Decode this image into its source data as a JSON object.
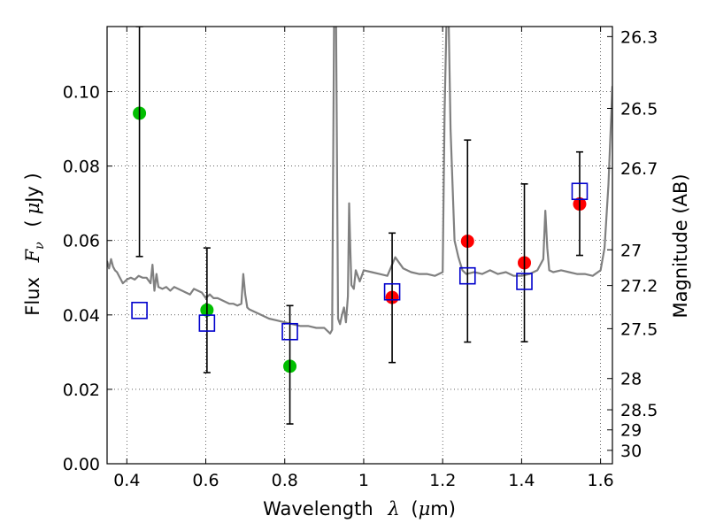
{
  "chart_data": {
    "type": "scatter",
    "title": "",
    "xlabel": {
      "prefix": "Wavelength",
      "symbol": "λ",
      "unit_open": "(",
      "unit_mu": "μ",
      "unit_rest": "m)"
    },
    "ylabel": {
      "prefix": "Flux",
      "symbol": "F",
      "subscript": "ν",
      "unit_open": "(",
      "unit_mu": "μ",
      "unit_rest": "Jy )"
    },
    "y2label": "Magnitude (AB)",
    "xlim": [
      0.35,
      1.63
    ],
    "ylim": [
      0.0,
      0.1175
    ],
    "grid": true,
    "x_ticks": [
      {
        "value": 0.4,
        "label": "0.4"
      },
      {
        "value": 0.6,
        "label": "0.6"
      },
      {
        "value": 0.8,
        "label": "0.8"
      },
      {
        "value": 1.0,
        "label": "1"
      },
      {
        "value": 1.2,
        "label": "1.2"
      },
      {
        "value": 1.4,
        "label": "1.4"
      },
      {
        "value": 1.6,
        "label": "1.6"
      }
    ],
    "y_ticks": [
      {
        "value": 0.0,
        "label": "0.00"
      },
      {
        "value": 0.02,
        "label": "0.02"
      },
      {
        "value": 0.04,
        "label": "0.04"
      },
      {
        "value": 0.06,
        "label": "0.06"
      },
      {
        "value": 0.08,
        "label": "0.08"
      },
      {
        "value": 0.1,
        "label": "0.10"
      }
    ],
    "y2_ticks": [
      {
        "flux": 0.1148,
        "label": "26.3"
      },
      {
        "flux": 0.0955,
        "label": "26.5"
      },
      {
        "flux": 0.0794,
        "label": "26.7"
      },
      {
        "flux": 0.0575,
        "label": "27"
      },
      {
        "flux": 0.0479,
        "label": "27.2"
      },
      {
        "flux": 0.0363,
        "label": "27.5"
      },
      {
        "flux": 0.0229,
        "label": "28"
      },
      {
        "flux": 0.0145,
        "label": "28.5"
      },
      {
        "flux": 0.0091,
        "label": "29"
      },
      {
        "flux": 0.0036,
        "label": "30"
      }
    ],
    "series": [
      {
        "kind": "line",
        "color": "#808080",
        "x": [
          0.35,
          0.355,
          0.36,
          0.365,
          0.37,
          0.375,
          0.38,
          0.385,
          0.39,
          0.395,
          0.4,
          0.41,
          0.42,
          0.43,
          0.44,
          0.45,
          0.46,
          0.465,
          0.47,
          0.475,
          0.48,
          0.49,
          0.5,
          0.51,
          0.52,
          0.53,
          0.54,
          0.55,
          0.56,
          0.57,
          0.58,
          0.59,
          0.6,
          0.61,
          0.62,
          0.63,
          0.64,
          0.65,
          0.66,
          0.67,
          0.68,
          0.69,
          0.695,
          0.7,
          0.705,
          0.71,
          0.72,
          0.74,
          0.76,
          0.78,
          0.8,
          0.82,
          0.84,
          0.86,
          0.88,
          0.9,
          0.91,
          0.915,
          0.92,
          0.925,
          0.928,
          0.93,
          0.935,
          0.94,
          0.945,
          0.95,
          0.955,
          0.96,
          0.963,
          0.966,
          0.969,
          0.975,
          0.98,
          0.99,
          1.0,
          1.02,
          1.04,
          1.06,
          1.08,
          1.1,
          1.12,
          1.14,
          1.16,
          1.18,
          1.2,
          1.205,
          1.21,
          1.215,
          1.22,
          1.23,
          1.24,
          1.25,
          1.26,
          1.28,
          1.3,
          1.32,
          1.34,
          1.36,
          1.38,
          1.4,
          1.42,
          1.44,
          1.455,
          1.46,
          1.465,
          1.47,
          1.48,
          1.5,
          1.52,
          1.54,
          1.56,
          1.58,
          1.6,
          1.61,
          1.62,
          1.63
        ],
        "y": [
          0.0545,
          0.0525,
          0.055,
          0.053,
          0.052,
          0.0515,
          0.0505,
          0.0495,
          0.0485,
          0.049,
          0.0495,
          0.05,
          0.0495,
          0.0505,
          0.05,
          0.05,
          0.0485,
          0.0535,
          0.0465,
          0.051,
          0.0475,
          0.047,
          0.0475,
          0.0465,
          0.0475,
          0.047,
          0.0465,
          0.046,
          0.0455,
          0.047,
          0.0465,
          0.046,
          0.0445,
          0.0455,
          0.0445,
          0.0445,
          0.044,
          0.0435,
          0.043,
          0.043,
          0.0425,
          0.043,
          0.051,
          0.0455,
          0.042,
          0.0415,
          0.041,
          0.04,
          0.039,
          0.0385,
          0.038,
          0.0375,
          0.037,
          0.037,
          0.0365,
          0.0365,
          0.0355,
          0.035,
          0.036,
          0.12,
          0.12,
          0.12,
          0.039,
          0.0375,
          0.04,
          0.042,
          0.038,
          0.045,
          0.07,
          0.058,
          0.048,
          0.047,
          0.052,
          0.049,
          0.052,
          0.0515,
          0.051,
          0.0505,
          0.0555,
          0.0525,
          0.0515,
          0.051,
          0.051,
          0.0505,
          0.0515,
          0.095,
          0.12,
          0.12,
          0.09,
          0.06,
          0.0555,
          0.052,
          0.051,
          0.0515,
          0.051,
          0.052,
          0.051,
          0.0515,
          0.0505,
          0.0505,
          0.051,
          0.052,
          0.055,
          0.068,
          0.058,
          0.052,
          0.0515,
          0.052,
          0.0515,
          0.051,
          0.051,
          0.0505,
          0.052,
          0.058,
          0.075,
          0.1015
        ]
      },
      {
        "kind": "points",
        "marker": "circle",
        "color": "#00bf00",
        "x": [
          0.432,
          0.603,
          0.813
        ],
        "y": [
          0.0942,
          0.0413,
          0.0262
        ]
      },
      {
        "kind": "points",
        "marker": "circle",
        "color": "#ff0000",
        "x": [
          1.072,
          1.263,
          1.407,
          1.547
        ],
        "y": [
          0.0447,
          0.0598,
          0.054,
          0.0698
        ]
      },
      {
        "kind": "points",
        "marker": "square-open",
        "color": "#0000cc",
        "x": [
          0.432,
          0.603,
          0.813,
          1.072,
          1.263,
          1.407,
          1.547
        ],
        "y": [
          0.0412,
          0.0378,
          0.0355,
          0.0462,
          0.0505,
          0.049,
          0.0732
        ]
      },
      {
        "kind": "errorbars",
        "color": "#000000",
        "x": [
          0.432,
          0.603,
          0.813,
          1.072,
          1.263,
          1.407,
          1.547
        ],
        "low": [
          0.0557,
          0.0245,
          0.0107,
          0.0272,
          0.0327,
          0.0328,
          0.056
        ],
        "high": [
          0.1175,
          0.058,
          0.0425,
          0.062,
          0.087,
          0.0752,
          0.0838
        ]
      }
    ]
  }
}
